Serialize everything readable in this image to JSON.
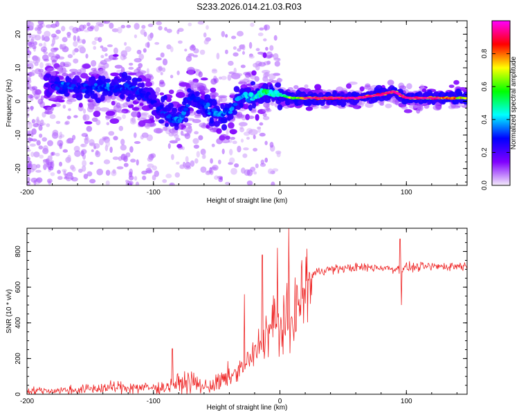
{
  "page_title": "S233.2026.014.21.03.R03",
  "chart_data": [
    {
      "type": "heatmap",
      "title": "S233.2026.014.21.03.R03",
      "xlabel": "Height of straight line (km)",
      "ylabel": "Frequency (Hz)",
      "xlim": [
        -200,
        148
      ],
      "ylim": [
        -25,
        24
      ],
      "xticks": [
        -200,
        -100,
        0,
        100
      ],
      "xtick_labels": [
        "-200",
        "-100",
        "0",
        "100"
      ],
      "yticks": [
        -20,
        -10,
        0,
        10,
        20
      ],
      "ytick_labels": [
        "-20",
        "-10",
        "0",
        "10",
        "20"
      ],
      "colorbar": {
        "label": "Normalized spectral amplitude",
        "range": [
          0,
          1
        ],
        "ticks": [
          0.0,
          0.2,
          0.4,
          0.6,
          0.8
        ],
        "tick_labels": [
          "0.0",
          "0.2",
          "0.4",
          "0.6",
          "0.8"
        ],
        "colors": [
          "#f4ecfa",
          "#8000ff",
          "#0000ff",
          "#00ffff",
          "#00ff00",
          "#ffff00",
          "#ff0000",
          "#ff00ff"
        ]
      },
      "ridge": {
        "x": [
          -180,
          -170,
          -160,
          -150,
          -140,
          -130,
          -120,
          -110,
          -100,
          -90,
          -80,
          -70,
          -60,
          -50,
          -40,
          -30,
          -20,
          -10,
          0,
          10,
          20,
          40,
          60,
          80,
          90,
          100,
          110,
          120,
          148
        ],
        "freq": [
          5,
          5,
          4,
          4,
          4,
          4,
          4,
          3,
          0,
          -4,
          -6,
          1,
          -1,
          -4,
          -3,
          2,
          1,
          3,
          2,
          1,
          1,
          1,
          1,
          2,
          3,
          1,
          1,
          1,
          1
        ],
        "amplitude": [
          0.25,
          0.35,
          0.25,
          0.3,
          0.35,
          0.3,
          0.3,
          0.3,
          0.25,
          0.3,
          0.35,
          0.3,
          0.3,
          0.35,
          0.35,
          0.35,
          0.45,
          0.5,
          0.5,
          0.65,
          0.75,
          0.8,
          0.85,
          0.85,
          0.85,
          0.8,
          0.8,
          0.8,
          0.75
        ]
      }
    },
    {
      "type": "line",
      "xlabel": "Height of straight line (km)",
      "ylabel": "SNR (10 * v/v)",
      "xlim": [
        -200,
        148
      ],
      "ylim": [
        0,
        930
      ],
      "xticks": [
        -200,
        -100,
        0,
        100
      ],
      "xtick_labels": [
        "-200",
        "-100",
        "0",
        "100"
      ],
      "yticks": [
        0,
        200,
        400,
        600,
        800
      ],
      "ytick_labels": [
        "0",
        "200",
        "400",
        "600",
        "800"
      ],
      "color": "#ee2222",
      "series": [
        {
          "name": "SNR",
          "x": [
            -200,
            -180,
            -160,
            -140,
            -120,
            -100,
            -90,
            -80,
            -70,
            -60,
            -50,
            -40,
            -30,
            -20,
            -15,
            -10,
            -5,
            0,
            5,
            10,
            15,
            20,
            25,
            30,
            40,
            60,
            80,
            95,
            100,
            120,
            148
          ],
          "values": [
            20,
            20,
            25,
            35,
            40,
            35,
            40,
            60,
            70,
            40,
            60,
            90,
            150,
            220,
            300,
            350,
            400,
            380,
            390,
            440,
            500,
            600,
            660,
            690,
            700,
            710,
            710,
            700,
            710,
            715,
            720
          ]
        }
      ],
      "spikes": [
        {
          "x": -85,
          "value": 255
        },
        {
          "x": -28,
          "value": 560
        },
        {
          "x": -14,
          "value": 780
        },
        {
          "x": -2,
          "value": 820
        },
        {
          "x": 7,
          "value": 930
        },
        {
          "x": 8,
          "value": 230
        },
        {
          "x": 95,
          "value": 870
        },
        {
          "x": 96,
          "value": 500
        }
      ]
    }
  ]
}
